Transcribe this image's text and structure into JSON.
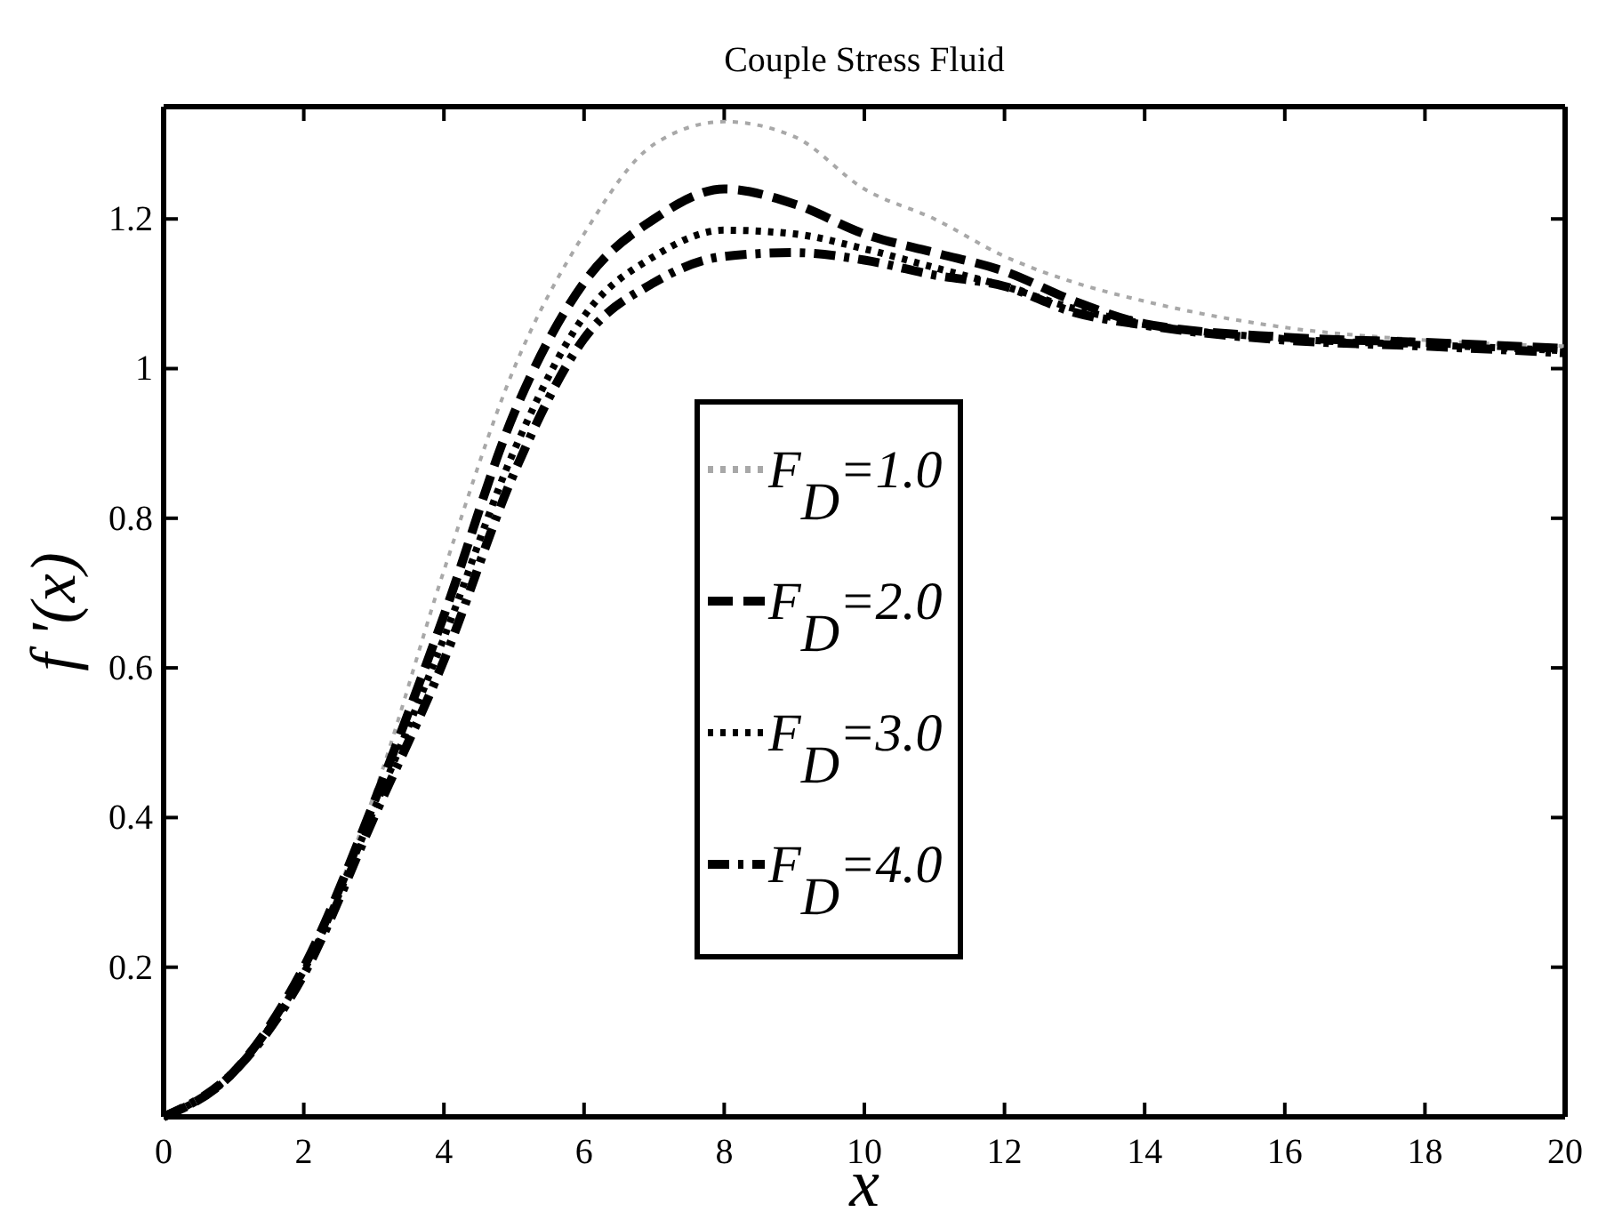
{
  "chart_data": {
    "type": "line",
    "title": "Couple Stress Fluid",
    "xlabel": "x",
    "ylabel": "f '(x)",
    "x": [
      0,
      1,
      2,
      3,
      4,
      5,
      6,
      7,
      8,
      9,
      10,
      11,
      12,
      13,
      14,
      16,
      18,
      20
    ],
    "series": [
      {
        "name": "F$_{D}$=1.0",
        "color": "#a8a8a8",
        "line_style": "dotted",
        "values": [
          0,
          0.06,
          0.2,
          0.43,
          0.73,
          1.0,
          1.18,
          1.3,
          1.33,
          1.31,
          1.24,
          1.2,
          1.15,
          1.115,
          1.09,
          1.055,
          1.038,
          1.03
        ]
      },
      {
        "name": "F$_{D}$=2.0",
        "color": "#000000",
        "line_style": "dashed",
        "values": [
          0,
          0.06,
          0.2,
          0.42,
          0.67,
          0.94,
          1.115,
          1.2,
          1.24,
          1.22,
          1.18,
          1.155,
          1.13,
          1.09,
          1.06,
          1.042,
          1.035,
          1.027
        ]
      },
      {
        "name": "F$_{D}$=3.0",
        "color": "#000000",
        "line_style": "dotted",
        "values": [
          0,
          0.06,
          0.195,
          0.41,
          0.64,
          0.89,
          1.07,
          1.15,
          1.185,
          1.18,
          1.16,
          1.135,
          1.11,
          1.08,
          1.06,
          1.04,
          1.032,
          1.024
        ]
      },
      {
        "name": "F$_{D}$=4.0",
        "color": "#000000",
        "line_style": "dashdot",
        "values": [
          0,
          0.06,
          0.19,
          0.4,
          0.61,
          0.86,
          1.04,
          1.115,
          1.15,
          1.155,
          1.145,
          1.125,
          1.11,
          1.075,
          1.058,
          1.038,
          1.03,
          1.021
        ]
      }
    ],
    "xlim": [
      0,
      20
    ],
    "xticks": [
      0,
      2,
      4,
      6,
      8,
      10,
      12,
      14,
      16,
      18,
      20
    ],
    "ylim": [
      0,
      1.35
    ],
    "yticks": [
      0.2,
      0.4,
      0.6,
      0.8,
      1,
      1.2
    ],
    "legend": "center",
    "grid": false
  }
}
